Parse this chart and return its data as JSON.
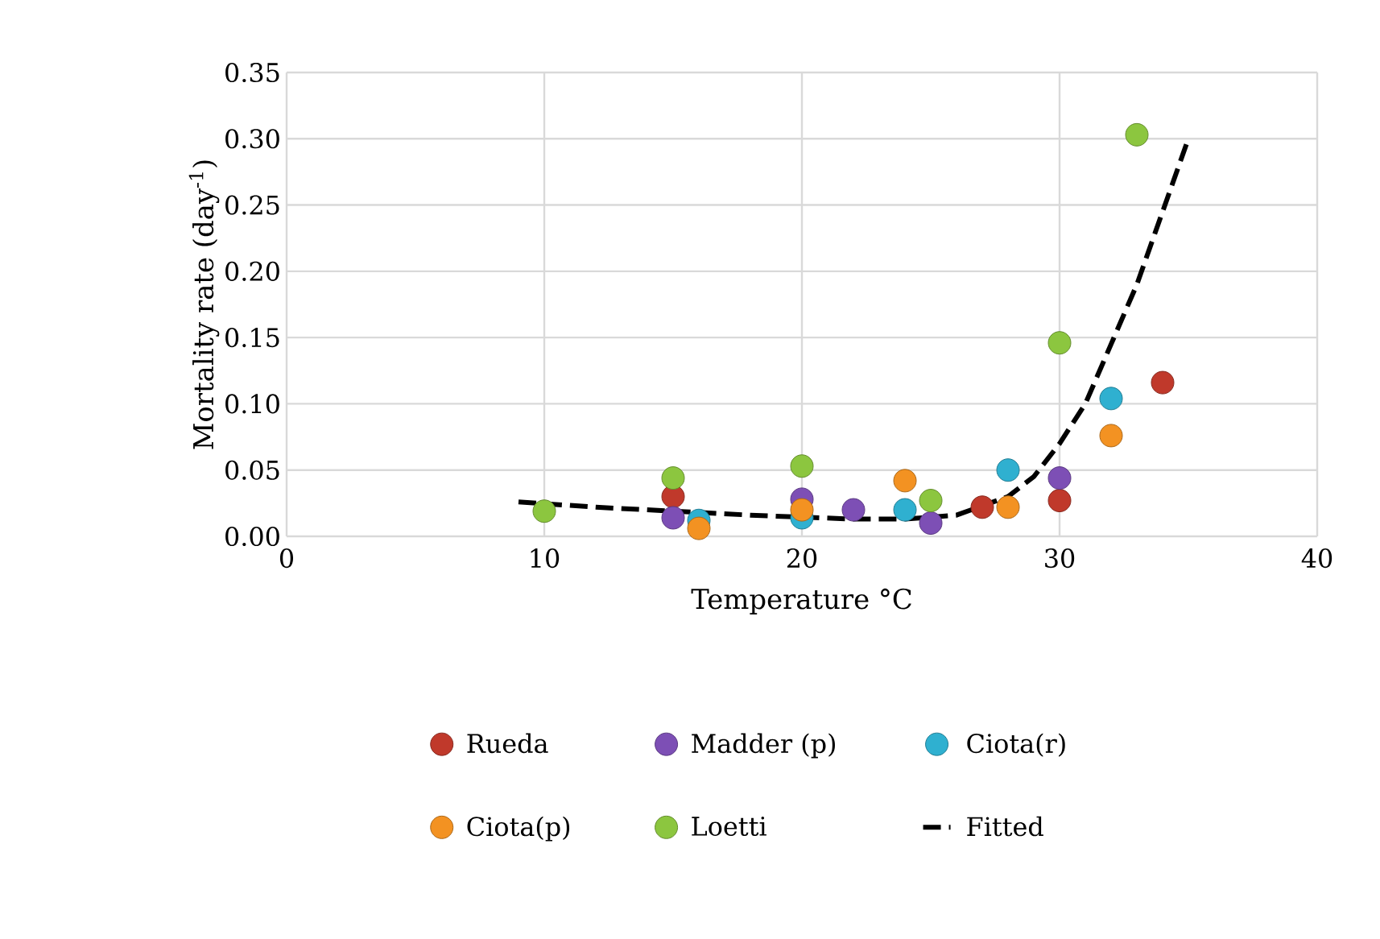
{
  "chart_data": {
    "type": "scatter",
    "xlabel": "Temperature °C",
    "ylabel": "Mortality rate (day$^{-1}$)",
    "xlim": [
      0,
      40
    ],
    "ylim": [
      0,
      0.35
    ],
    "xticks": [
      0,
      10,
      20,
      30,
      40
    ],
    "yticks": [
      {
        "value": 0,
        "label": "0.00"
      },
      {
        "value": 0.05,
        "label": "0.05"
      },
      {
        "value": 0.1,
        "label": "0.10"
      },
      {
        "value": 0.15,
        "label": "0.15"
      },
      {
        "value": 0.2,
        "label": "0.20"
      },
      {
        "value": 0.25,
        "label": "0.25"
      },
      {
        "value": 0.3,
        "label": "0.30"
      },
      {
        "value": 0.35,
        "label": "0.35"
      }
    ],
    "grid": true,
    "legend": "bottom",
    "series": [
      {
        "name": "Rueda",
        "color": "#c0392b",
        "x": [
          15,
          27,
          30,
          34
        ],
        "values": [
          0.03,
          0.022,
          0.027,
          0.116
        ]
      },
      {
        "name": "Madder (p)",
        "color": "#7d4fb5",
        "x": [
          15,
          20,
          22,
          25,
          30
        ],
        "values": [
          0.014,
          0.028,
          0.02,
          0.01,
          0.044
        ]
      },
      {
        "name": "Ciota(r)",
        "color": "#2fb0d0",
        "x": [
          16,
          20,
          24,
          28,
          32
        ],
        "values": [
          0.012,
          0.014,
          0.02,
          0.05,
          0.104
        ]
      },
      {
        "name": "Ciota(p)",
        "color": "#f39222",
        "x": [
          16,
          20,
          24,
          28,
          32
        ],
        "values": [
          0.006,
          0.02,
          0.042,
          0.022,
          0.076
        ]
      },
      {
        "name": "Loetti",
        "color": "#8cc63f",
        "x": [
          10,
          15,
          20,
          25,
          30,
          33
        ],
        "values": [
          0.019,
          0.044,
          0.053,
          0.027,
          0.146,
          0.303
        ]
      },
      {
        "name": "Fitted",
        "type": "line",
        "color": "#000000",
        "line_style": "dashed",
        "marker": "none",
        "x": [
          9,
          12,
          15,
          18,
          22,
          24,
          26,
          28,
          29,
          30,
          31,
          32,
          33,
          34,
          35
        ],
        "values": [
          0.026,
          0.022,
          0.019,
          0.016,
          0.013,
          0.013,
          0.016,
          0.03,
          0.045,
          0.07,
          0.1,
          0.145,
          0.19,
          0.245,
          0.3
        ]
      }
    ]
  }
}
